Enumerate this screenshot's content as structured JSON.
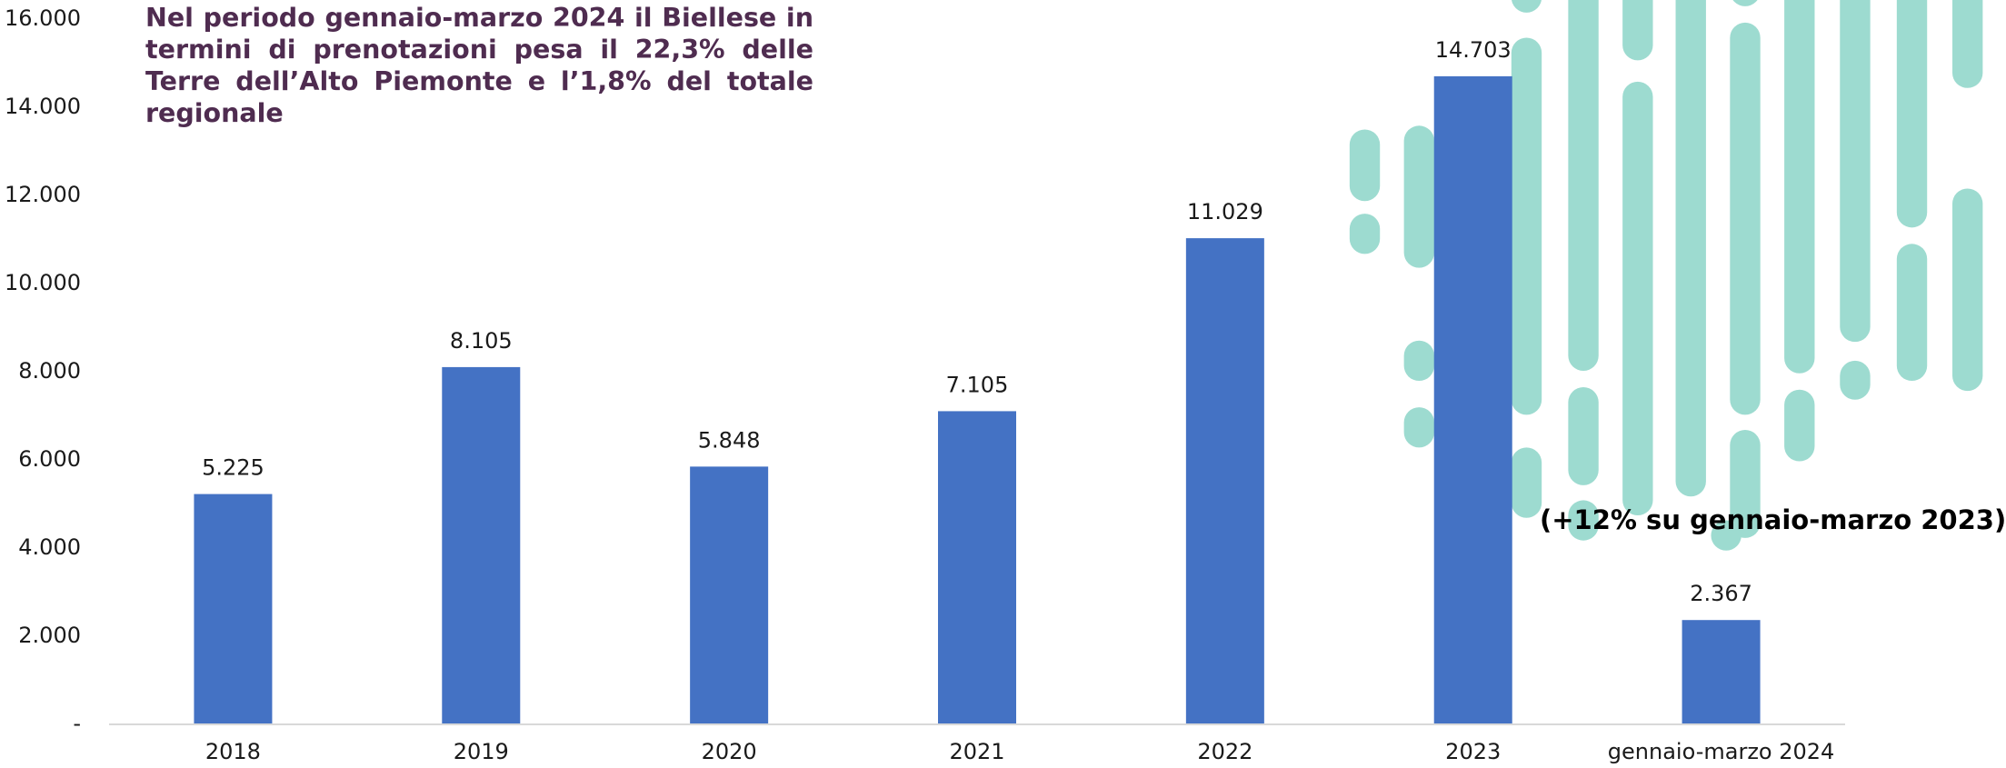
{
  "chart_data": {
    "type": "bar",
    "title": "Nel periodo gennaio-marzo 2024 il Biellese in termini di prenotazioni pesa il 22,3% delle Terre dell’Alto Piemonte e l’1,8% del totale regionale",
    "annotation": "(+12% su gennaio-marzo 2023)",
    "categories": [
      "2018",
      "2019",
      "2020",
      "2021",
      "2022",
      "2023",
      "gennaio-marzo 2024"
    ],
    "values": [
      5225,
      8105,
      5848,
      7105,
      11029,
      14703,
      2367
    ],
    "value_labels": [
      "5.225",
      "8.105",
      "5.848",
      "7.105",
      "11.029",
      "14.703",
      "2.367"
    ],
    "color": "#4472c4",
    "ylim": [
      0,
      16000
    ],
    "yticks": [
      {
        "value": 0,
        "label": "-"
      },
      {
        "value": 2000,
        "label": "2.000"
      },
      {
        "value": 4000,
        "label": "4.000"
      },
      {
        "value": 6000,
        "label": "6.000"
      },
      {
        "value": 8000,
        "label": "8.000"
      },
      {
        "value": 10000,
        "label": "10.000"
      },
      {
        "value": 12000,
        "label": "12.000"
      },
      {
        "value": 14000,
        "label": "14.000"
      },
      {
        "value": 16000,
        "label": "16.000"
      }
    ],
    "grid": false
  }
}
